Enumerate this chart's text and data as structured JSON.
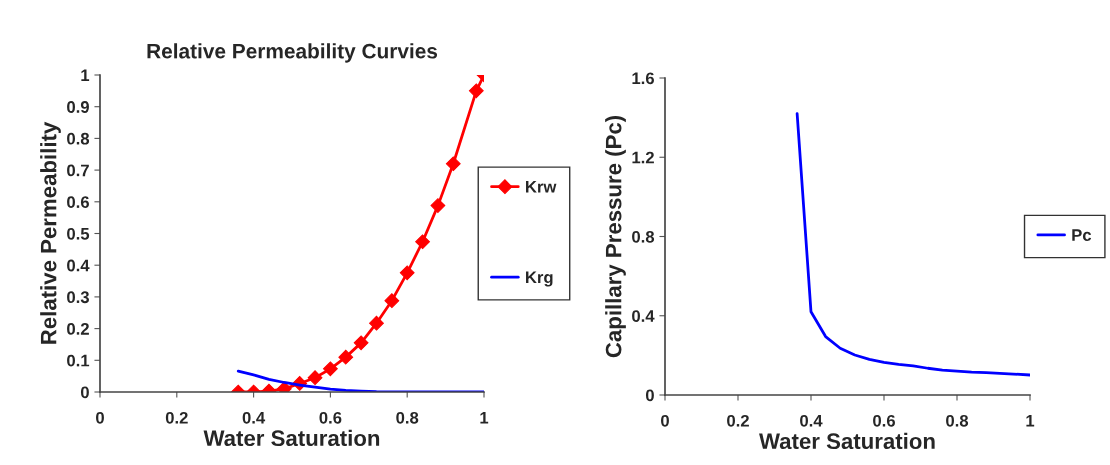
{
  "chart_data": [
    {
      "type": "line",
      "title": "Relative Permeability Curvies",
      "xlabel": "Water Saturation",
      "ylabel": "Relative Permeability",
      "xlim": [
        0,
        1
      ],
      "xticks": [
        0,
        0.2,
        0.4,
        0.6,
        0.8,
        1
      ],
      "ylim": [
        0,
        1
      ],
      "yticks": [
        0,
        0.1,
        0.2,
        0.3,
        0.4,
        0.5,
        0.6,
        0.7,
        0.8,
        0.9,
        1
      ],
      "grid": false,
      "legend": "right",
      "series": [
        {
          "name": "Krw",
          "color": "#ff0000",
          "marker": "diamond",
          "x": [
            0.36,
            0.4,
            0.44,
            0.48,
            0.52,
            0.56,
            0.6,
            0.64,
            0.68,
            0.72,
            0.76,
            0.8,
            0.84,
            0.88,
            0.92,
            0.98,
            1.0
          ],
          "values": [
            0,
            0,
            0.003,
            0.01,
            0.027,
            0.045,
            0.073,
            0.11,
            0.155,
            0.217,
            0.288,
            0.376,
            0.474,
            0.588,
            0.72,
            0.95,
            1.0
          ]
        },
        {
          "name": "Krg",
          "color": "#0000ff",
          "marker": "none",
          "x": [
            0.36,
            0.4,
            0.44,
            0.48,
            0.52,
            0.56,
            0.6,
            0.64,
            0.68,
            0.72,
            0.8,
            0.9,
            1.0
          ],
          "values": [
            0.066,
            0.054,
            0.04,
            0.03,
            0.022,
            0.015,
            0.009,
            0.005,
            0.003,
            0.001,
            0,
            0,
            0
          ]
        }
      ]
    },
    {
      "type": "line",
      "xlabel": "Water Saturation",
      "ylabel": "Capillary Pressure (Pc)",
      "xlim": [
        0,
        1
      ],
      "xticks": [
        0,
        0.2,
        0.4,
        0.6,
        0.8,
        1
      ],
      "ylim": [
        0,
        1.6
      ],
      "yticks": [
        0,
        0.4,
        0.8,
        1.2,
        1.6
      ],
      "grid": false,
      "legend": "right",
      "series": [
        {
          "name": "Pc",
          "color": "#0000ff",
          "marker": "none",
          "x": [
            0.362,
            0.4,
            0.44,
            0.48,
            0.52,
            0.56,
            0.6,
            0.64,
            0.68,
            0.72,
            0.76,
            0.8,
            0.84,
            0.88,
            1.0
          ],
          "values": [
            1.42,
            0.42,
            0.295,
            0.236,
            0.202,
            0.18,
            0.165,
            0.155,
            0.147,
            0.135,
            0.126,
            0.121,
            0.116,
            0.113,
            0.101
          ]
        }
      ]
    }
  ]
}
